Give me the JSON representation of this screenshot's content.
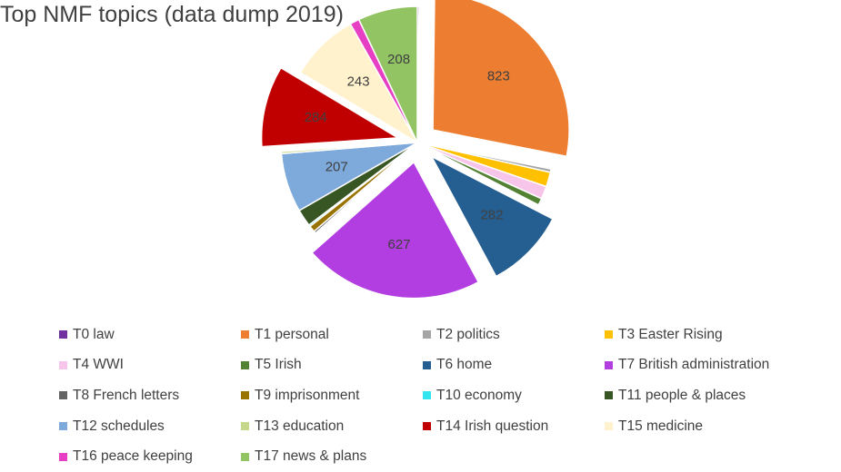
{
  "chart_data": {
    "type": "pie",
    "title": "Top NMF topics (data dump 2019)",
    "slices": [
      {
        "name": "T0 law",
        "value": 6,
        "color": "#7030a0",
        "label": ""
      },
      {
        "name": "T1 personal",
        "value": 823,
        "color": "#ed7d31",
        "label": "823"
      },
      {
        "name": "T2 politics",
        "value": 12,
        "color": "#a5a5a5",
        "label": ""
      },
      {
        "name": "T3 Easter Rising",
        "value": 51,
        "color": "#ffc000",
        "label": ""
      },
      {
        "name": "T4 WWI",
        "value": 45,
        "color": "#f8c5ea",
        "label": ""
      },
      {
        "name": "T5 Irish",
        "value": 24,
        "color": "#548235",
        "label": ""
      },
      {
        "name": "T6 home",
        "value": 282,
        "color": "#255e91",
        "label": "282"
      },
      {
        "name": "T7 British administration",
        "value": 627,
        "color": "#b23de0",
        "label": "627"
      },
      {
        "name": "T8 French letters",
        "value": 8,
        "color": "#636363",
        "label": ""
      },
      {
        "name": "T9 imprisonment",
        "value": 22,
        "color": "#997300",
        "label": ""
      },
      {
        "name": "T10 economy",
        "value": 6,
        "color": "#33e5ee",
        "label": ""
      },
      {
        "name": "T11 people & places",
        "value": 60,
        "color": "#375623",
        "label": ""
      },
      {
        "name": "T12 schedules",
        "value": 207,
        "color": "#7ea9db",
        "label": "207"
      },
      {
        "name": "T13 education",
        "value": 8,
        "color": "#c5d78a",
        "label": ""
      },
      {
        "name": "T14 Irish question",
        "value": 284,
        "color": "#c00000",
        "label": "284"
      },
      {
        "name": "T15 medicine",
        "value": 243,
        "color": "#fff2cc",
        "label": "243"
      },
      {
        "name": "T16 peace keeping",
        "value": 33,
        "color": "#e63fc4",
        "label": ""
      },
      {
        "name": "T17 news & plans",
        "value": 208,
        "color": "#92c464",
        "label": "208"
      }
    ],
    "exploded": [
      "T1 personal",
      "T6 home",
      "T7 British administration",
      "T14 Irish question"
    ],
    "legend_position": "bottom",
    "start_angle_deg": 0
  }
}
